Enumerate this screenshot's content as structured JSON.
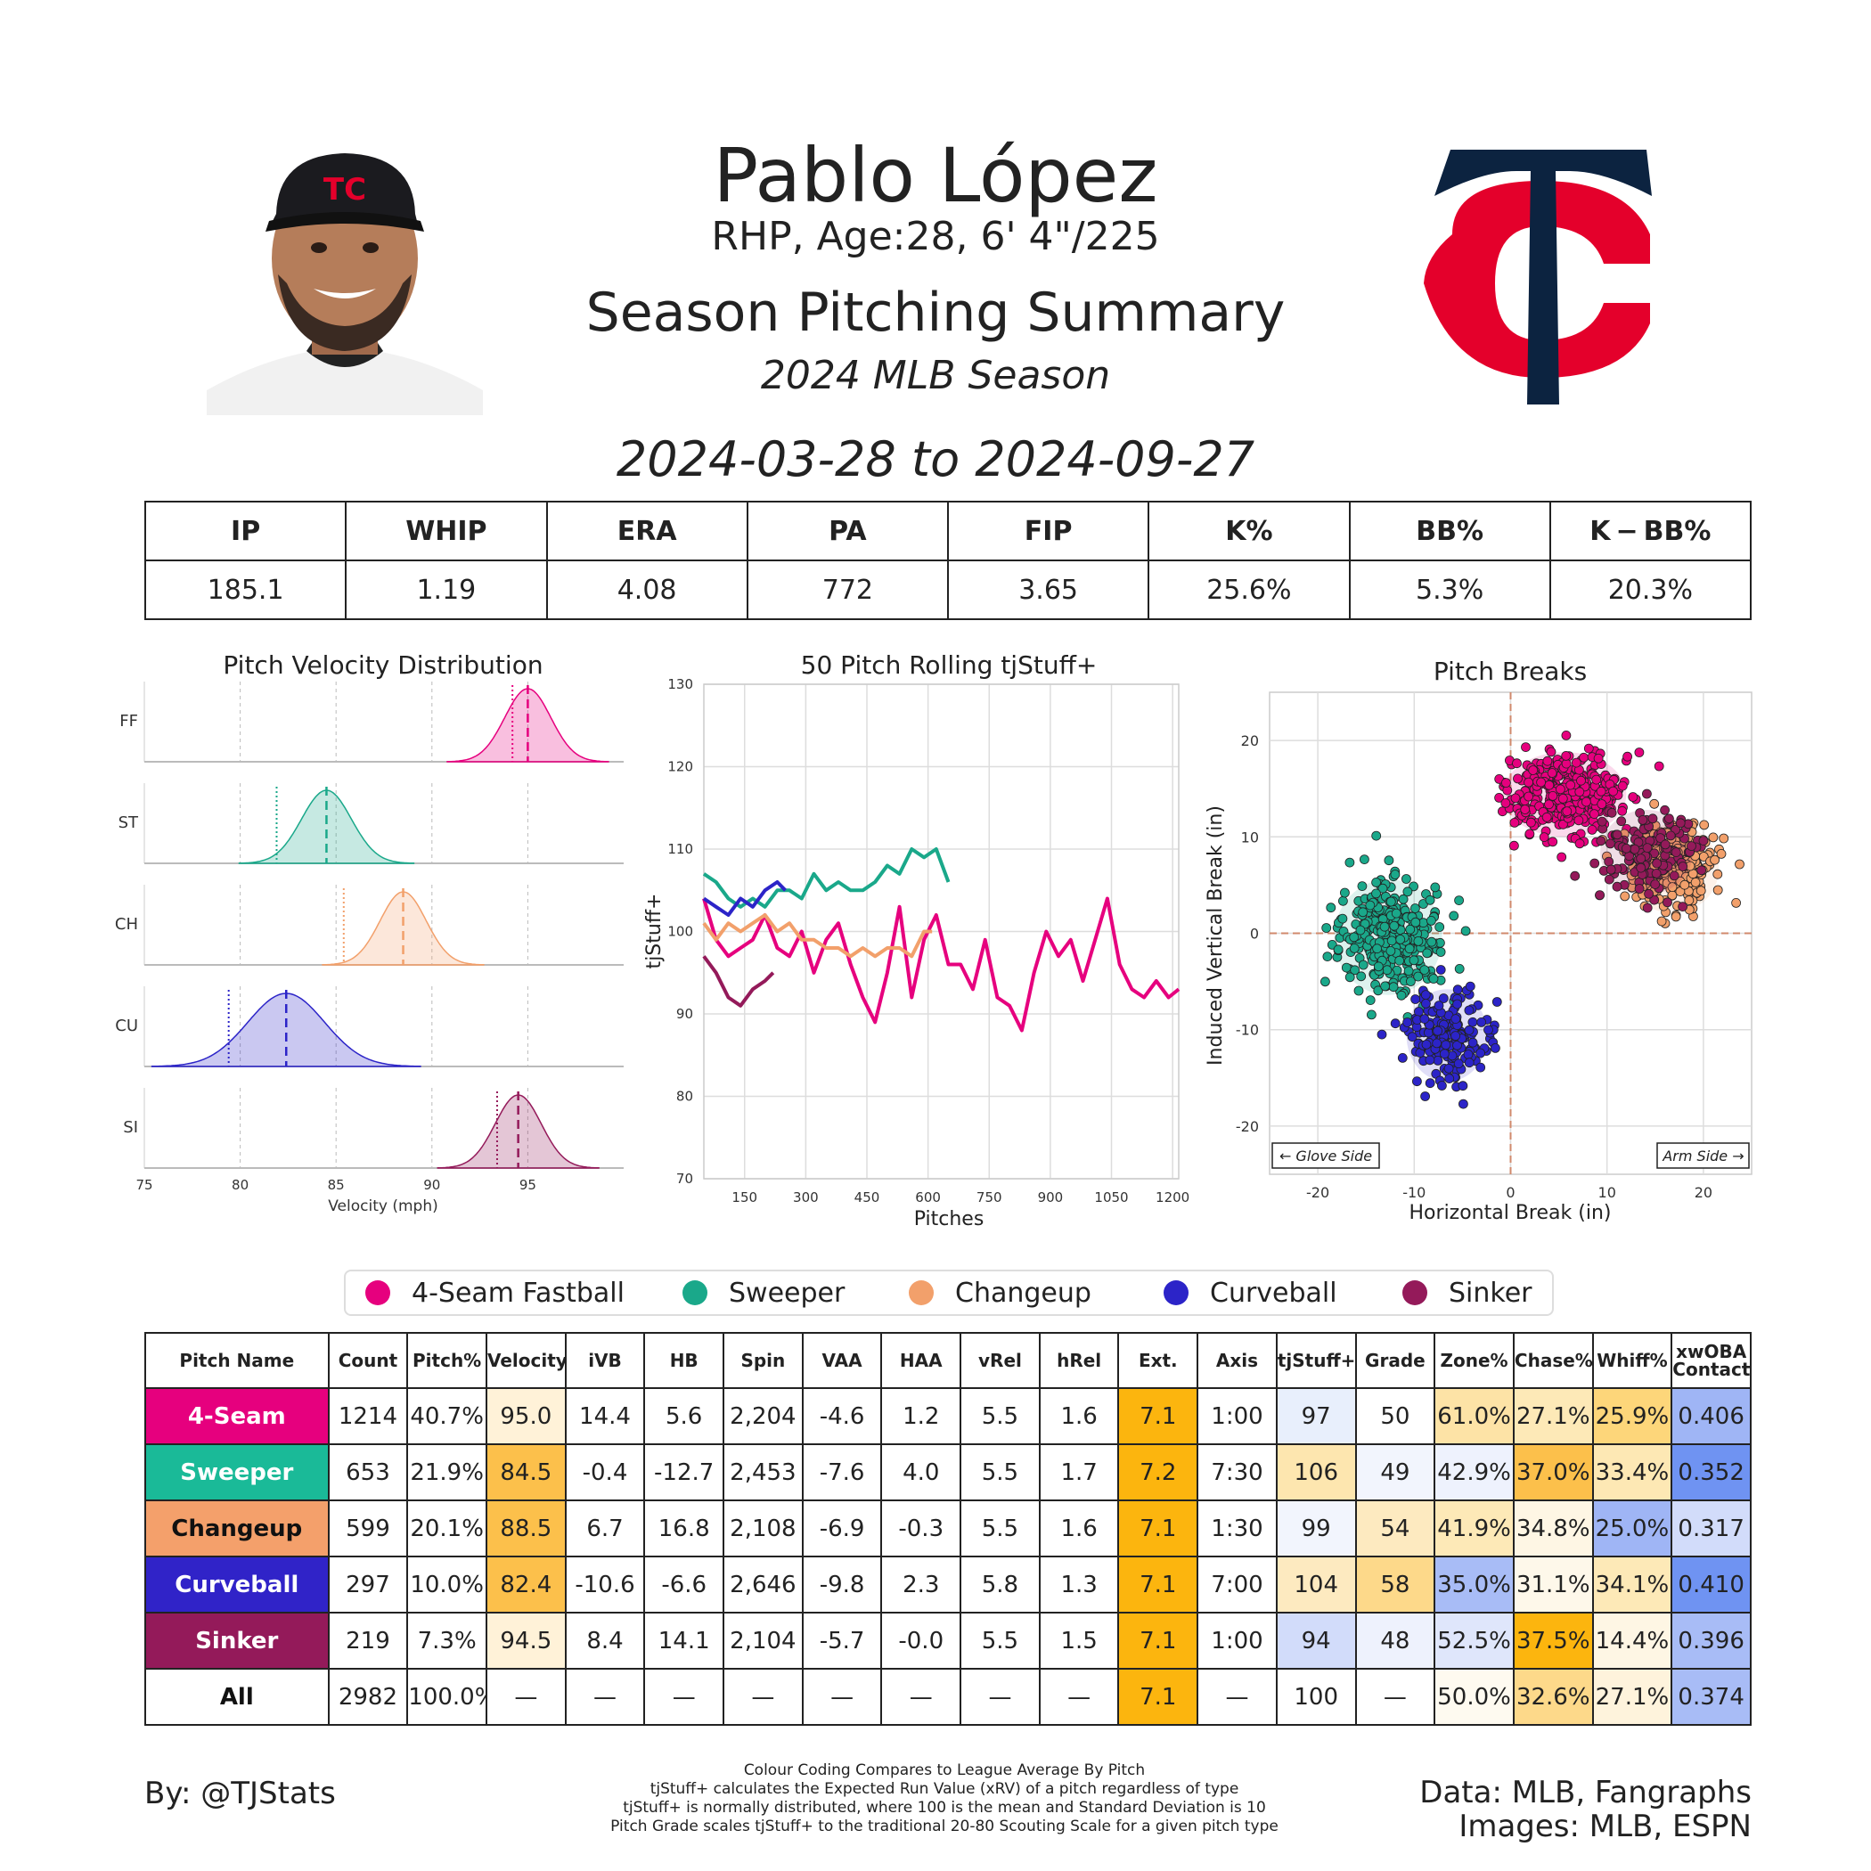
{
  "header": {
    "name": "Pablo López",
    "info": "RHP, Age:28, 6' 4\"/225",
    "title": "Season Pitching Summary",
    "season": "2024 MLB Season",
    "date_range": "2024-03-28 to 2024-09-27"
  },
  "summary": {
    "headers": [
      "IP",
      "WHIP",
      "ERA",
      "PA",
      "FIP",
      "K%",
      "BB%",
      "K − BB%"
    ],
    "values": [
      "185.1",
      "1.19",
      "4.08",
      "772",
      "3.65",
      "25.6%",
      "5.3%",
      "20.3%"
    ]
  },
  "colors": {
    "FF": "#e6007e",
    "ST": "#1aa88a",
    "CH": "#f2a06b",
    "CU": "#2c24c8",
    "SI": "#941a5a",
    "team_navy": "#0c2340",
    "team_red": "#e4002b"
  },
  "chart_data": [
    {
      "type": "area",
      "title": "Pitch Velocity Distribution",
      "xlabel": "Velocity (mph)",
      "xlim": [
        75,
        100
      ],
      "xticks": [
        75,
        80,
        85,
        90,
        95
      ],
      "series": [
        {
          "name": "FF",
          "mean": 95.0,
          "sd": 1.2,
          "league_avg": 94.2
        },
        {
          "name": "ST",
          "mean": 84.5,
          "sd": 1.3,
          "league_avg": 81.9
        },
        {
          "name": "CH",
          "mean": 88.5,
          "sd": 1.2,
          "league_avg": 85.4
        },
        {
          "name": "CU",
          "mean": 82.4,
          "sd": 2.0,
          "league_avg": 79.4
        },
        {
          "name": "SI",
          "mean": 94.5,
          "sd": 1.2,
          "league_avg": 93.4
        }
      ]
    },
    {
      "type": "line",
      "title": "50 Pitch Rolling tjStuff+",
      "xlabel": "Pitches",
      "ylabel": "tjStuff+",
      "xlim": [
        50,
        1215
      ],
      "ylim": [
        70,
        130
      ],
      "xticks": [
        150,
        300,
        450,
        600,
        750,
        900,
        1050,
        1200
      ],
      "yticks": [
        70,
        80,
        90,
        100,
        110,
        120,
        130
      ],
      "series": [
        {
          "name": "FF",
          "x": [
            50,
            80,
            110,
            140,
            170,
            200,
            230,
            260,
            290,
            320,
            350,
            380,
            410,
            440,
            470,
            500,
            530,
            560,
            590,
            620,
            650,
            680,
            710,
            740,
            770,
            800,
            830,
            860,
            890,
            920,
            950,
            980,
            1010,
            1040,
            1070,
            1100,
            1130,
            1160,
            1190,
            1215
          ],
          "y": [
            104,
            99,
            97,
            98,
            99,
            102,
            98,
            97,
            100,
            95,
            99,
            101,
            96,
            92,
            89,
            95,
            103,
            92,
            99,
            102,
            96,
            96,
            93,
            99,
            92,
            91,
            88,
            95,
            100,
            97,
            99,
            94,
            99,
            104,
            96,
            93,
            92,
            94,
            92,
            93
          ]
        },
        {
          "name": "ST",
          "x": [
            50,
            80,
            110,
            140,
            170,
            200,
            230,
            260,
            290,
            320,
            350,
            380,
            410,
            440,
            470,
            500,
            530,
            560,
            590,
            620,
            650
          ],
          "y": [
            107,
            106,
            104,
            103,
            104,
            103,
            105,
            105,
            104,
            107,
            105,
            106,
            105,
            105,
            106,
            108,
            107,
            110,
            109,
            110,
            106
          ]
        },
        {
          "name": "CH",
          "x": [
            50,
            80,
            110,
            140,
            170,
            200,
            230,
            260,
            290,
            320,
            350,
            380,
            410,
            440,
            470,
            500,
            530,
            560,
            590,
            610
          ],
          "y": [
            101,
            99,
            101,
            100,
            101,
            102,
            100,
            101,
            99,
            99,
            98,
            98,
            97,
            98,
            97,
            98,
            98,
            97,
            100,
            100
          ]
        },
        {
          "name": "CU",
          "x": [
            50,
            80,
            110,
            140,
            170,
            200,
            230,
            250
          ],
          "y": [
            104,
            103,
            102,
            104,
            103,
            105,
            106,
            105
          ]
        },
        {
          "name": "SI",
          "x": [
            50,
            80,
            110,
            140,
            170,
            200,
            220
          ],
          "y": [
            97,
            95,
            92,
            91,
            93,
            94,
            95
          ]
        }
      ]
    },
    {
      "type": "scatter",
      "title": "Pitch Breaks",
      "xlabel": "Horizontal Break (in)",
      "ylabel": "Induced Vertical Break (in)",
      "xlim": [
        -25,
        25
      ],
      "ylim": [
        -25,
        25
      ],
      "xticks": [
        -20,
        -10,
        0,
        10,
        20
      ],
      "yticks": [
        -20,
        -10,
        0,
        10,
        20
      ],
      "annotations": [
        "← Glove Side",
        "Arm Side →"
      ],
      "series": [
        {
          "name": "FF",
          "center": [
            5.6,
            14.4
          ],
          "spread": [
            3.2,
            2.2
          ]
        },
        {
          "name": "ST",
          "center": [
            -12.7,
            -0.4
          ],
          "spread": [
            2.8,
            3.0
          ]
        },
        {
          "name": "CH",
          "center": [
            16.8,
            6.7
          ],
          "spread": [
            2.4,
            2.3
          ]
        },
        {
          "name": "CU",
          "center": [
            -6.6,
            -10.6
          ],
          "spread": [
            2.1,
            2.4
          ]
        },
        {
          "name": "SI",
          "center": [
            14.1,
            8.4
          ],
          "spread": [
            2.4,
            2.2
          ]
        }
      ]
    }
  ],
  "legend": [
    {
      "label": "4-Seam Fastball",
      "color": "#e6007e"
    },
    {
      "label": "Sweeper",
      "color": "#1aa88a"
    },
    {
      "label": "Changeup",
      "color": "#f2a06b"
    },
    {
      "label": "Curveball",
      "color": "#2c24c8"
    },
    {
      "label": "Sinker",
      "color": "#941a5a"
    }
  ],
  "pitch_table": {
    "headers": [
      "Pitch Name",
      "Count",
      "Pitch%",
      "Velocity",
      "iVB",
      "HB",
      "Spin",
      "VAA",
      "HAA",
      "vRel",
      "hRel",
      "Ext.",
      "Axis",
      "tjStuff+",
      "Grade",
      "Zone%",
      "Chase%",
      "Whiff%",
      "xwOBA Contact"
    ],
    "rows": [
      {
        "name": "4-Seam",
        "name_bg": "#e6007e",
        "name_fg": "#ffffff",
        "cells": [
          "1214",
          "40.7%",
          "95.0",
          "14.4",
          "5.6",
          "2,204",
          "-4.6",
          "1.2",
          "5.5",
          "1.6",
          "7.1",
          "1:00",
          "97",
          "50",
          "61.0%",
          "27.1%",
          "25.9%",
          "0.406"
        ],
        "bg": [
          "#fff",
          "#fff",
          "#fff2d8",
          "#fff",
          "#fff",
          "#fff",
          "#fff",
          "#fff",
          "#fff",
          "#fff",
          "#fcb50e",
          "#fff",
          "#e8effc",
          "#fff",
          "#fde3a6",
          "#fde9b7",
          "#fdd67a",
          "#9fb5f5"
        ]
      },
      {
        "name": "Sweeper",
        "name_bg": "#1aba98",
        "name_fg": "#ffffff",
        "cells": [
          "653",
          "21.9%",
          "84.5",
          "-0.4",
          "-12.7",
          "2,453",
          "-7.6",
          "4.0",
          "5.5",
          "1.7",
          "7.2",
          "7:30",
          "106",
          "49",
          "42.9%",
          "37.0%",
          "33.4%",
          "0.352"
        ],
        "bg": [
          "#fff",
          "#fff",
          "#fcc04b",
          "#fff",
          "#fff",
          "#fff",
          "#fff",
          "#fff",
          "#fff",
          "#fff",
          "#fcb50e",
          "#fff",
          "#fde6af",
          "#f2f5fd",
          "#eef2fd",
          "#fcc04b",
          "#fde8b4",
          "#6f93f2"
        ]
      },
      {
        "name": "Changeup",
        "name_bg": "#f4a06b",
        "name_fg": "#111111",
        "cells": [
          "599",
          "20.1%",
          "88.5",
          "6.7",
          "16.8",
          "2,108",
          "-6.9",
          "-0.3",
          "5.5",
          "1.6",
          "7.1",
          "1:30",
          "99",
          "54",
          "41.9%",
          "34.8%",
          "25.0%",
          "0.317"
        ],
        "bg": [
          "#fff",
          "#fff",
          "#fcc04b",
          "#fff",
          "#fff",
          "#fff",
          "#fff",
          "#fff",
          "#fff",
          "#fff",
          "#fcb50e",
          "#fff",
          "#f2f5fd",
          "#fdeac0",
          "#fde9b7",
          "#fef6e4",
          "#9fb5f5",
          "#d2dcfa"
        ]
      },
      {
        "name": "Curveball",
        "name_bg": "#3023c8",
        "name_fg": "#ffffff",
        "cells": [
          "297",
          "10.0%",
          "82.4",
          "-10.6",
          "-6.6",
          "2,646",
          "-9.8",
          "2.3",
          "5.8",
          "1.3",
          "7.1",
          "7:00",
          "104",
          "58",
          "35.0%",
          "31.1%",
          "34.1%",
          "0.410"
        ],
        "bg": [
          "#fff",
          "#fff",
          "#fcc04b",
          "#fff",
          "#fff",
          "#fff",
          "#fff",
          "#fff",
          "#fff",
          "#fff",
          "#fcb50e",
          "#fff",
          "#fdeac0",
          "#fdd98a",
          "#a8bcf6",
          "#fef8ea",
          "#fde9b7",
          "#6f93f2"
        ]
      },
      {
        "name": "Sinker",
        "name_bg": "#941a5a",
        "name_fg": "#ffffff",
        "cells": [
          "219",
          "7.3%",
          "94.5",
          "8.4",
          "14.1",
          "2,104",
          "-5.7",
          "-0.0",
          "5.5",
          "1.5",
          "7.1",
          "1:00",
          "94",
          "48",
          "52.5%",
          "37.5%",
          "14.4%",
          "0.396"
        ],
        "bg": [
          "#fff",
          "#fff",
          "#fff2d8",
          "#fff",
          "#fff",
          "#fff",
          "#fff",
          "#fff",
          "#fff",
          "#fff",
          "#fcb50e",
          "#fff",
          "#d2dcfa",
          "#eef2fd",
          "#dfe6fb",
          "#fcb50e",
          "#fef6e4",
          "#a8bcf6"
        ]
      },
      {
        "name": "All",
        "name_bg": "#ffffff",
        "name_fg": "#111111",
        "cells": [
          "2982",
          "100.0%",
          "—",
          "—",
          "—",
          "—",
          "—",
          "—",
          "—",
          "—",
          "7.1",
          "—",
          "100",
          "—",
          "50.0%",
          "32.6%",
          "27.1%",
          "0.374"
        ],
        "bg": [
          "#fff",
          "#fff",
          "#fff",
          "#fff",
          "#fff",
          "#fff",
          "#fff",
          "#fff",
          "#fff",
          "#fff",
          "#fcb50e",
          "#fff",
          "#fff",
          "#fff",
          "#fefaf0",
          "#fdd98a",
          "#fef3dc",
          "#a8bcf6"
        ]
      }
    ]
  },
  "footer": {
    "left": "By: @TJStats",
    "notes": [
      "Colour Coding Compares to League Average By Pitch",
      "tjStuff+ calculates the Expected Run Value (xRV) of a pitch regardless of type",
      "tjStuff+ is normally distributed, where 100 is the mean and Standard Deviation is 10",
      "Pitch Grade scales tjStuff+ to the traditional 20-80 Scouting Scale for a given pitch type"
    ],
    "right_1": "Data: MLB, Fangraphs",
    "right_2": "Images: MLB, ESPN"
  }
}
